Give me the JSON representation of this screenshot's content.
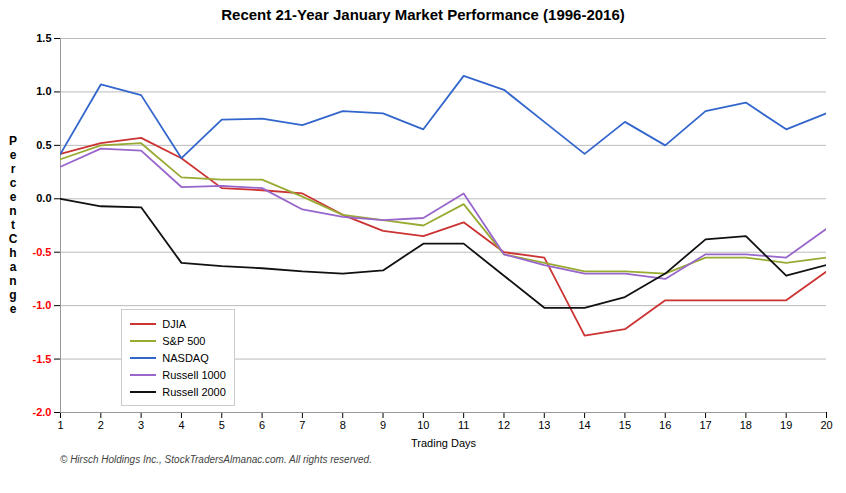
{
  "chart_data": {
    "type": "line",
    "title": "Recent 21-Year January Market Performance (1996-2016)",
    "xlabel": "Trading Days",
    "ylabel": "PercentChange",
    "x": [
      1,
      2,
      3,
      4,
      5,
      6,
      7,
      8,
      9,
      10,
      11,
      12,
      13,
      14,
      15,
      16,
      17,
      18,
      19,
      20
    ],
    "series": [
      {
        "name": "DJIA",
        "color": "#cc3333",
        "values": [
          0.42,
          0.52,
          0.57,
          0.38,
          0.1,
          0.08,
          0.05,
          -0.15,
          -0.3,
          -0.35,
          -0.22,
          -0.5,
          -0.55,
          -1.28,
          -1.22,
          -0.95,
          -0.95,
          -0.95,
          -0.95,
          -0.68
        ]
      },
      {
        "name": "S&P 500",
        "color": "#99aa33",
        "values": [
          0.37,
          0.5,
          0.52,
          0.2,
          0.18,
          0.18,
          0.02,
          -0.15,
          -0.2,
          -0.25,
          -0.05,
          -0.52,
          -0.6,
          -0.68,
          -0.68,
          -0.7,
          -0.55,
          -0.55,
          -0.6,
          -0.55
        ]
      },
      {
        "name": "NASDAQ",
        "color": "#3366cc",
        "values": [
          0.42,
          1.07,
          0.97,
          0.38,
          0.74,
          0.75,
          0.69,
          0.82,
          0.8,
          0.65,
          1.15,
          1.02,
          0.72,
          0.42,
          0.72,
          0.5,
          0.82,
          0.9,
          0.65,
          0.8
        ]
      },
      {
        "name": "Russell 1000",
        "color": "#9966cc",
        "values": [
          0.3,
          0.47,
          0.45,
          0.11,
          0.12,
          0.1,
          -0.1,
          -0.17,
          -0.2,
          -0.18,
          0.05,
          -0.52,
          -0.62,
          -0.7,
          -0.7,
          -0.75,
          -0.52,
          -0.52,
          -0.55,
          -0.28
        ]
      },
      {
        "name": "Russell 2000",
        "color": "#111111",
        "values": [
          0.0,
          -0.07,
          -0.08,
          -0.6,
          -0.63,
          -0.65,
          -0.68,
          -0.7,
          -0.67,
          -0.42,
          -0.42,
          -0.72,
          -1.02,
          -1.02,
          -0.92,
          -0.7,
          -0.38,
          -0.35,
          -0.72,
          -0.62
        ]
      }
    ],
    "xlim": [
      1,
      20
    ],
    "xticks": [
      1,
      2,
      3,
      4,
      5,
      6,
      7,
      8,
      9,
      10,
      11,
      12,
      13,
      14,
      15,
      16,
      17,
      18,
      19,
      20
    ],
    "ylim": [
      -2.0,
      1.5
    ],
    "yticks": [
      {
        "value": -2.0,
        "label": "-2.0"
      },
      -1.5,
      {
        "value": -1.0,
        "label": "-1.0"
      },
      -0.5,
      {
        "value": 0.0,
        "label": "0.0"
      },
      0.5,
      {
        "value": 1.0,
        "label": "1.0"
      },
      1.5
    ],
    "grid": true,
    "legend": "lower left",
    "annotations": [
      "© Hirsch Holdings Inc., StockTradersAlmanac.com. All rights reserved."
    ]
  }
}
